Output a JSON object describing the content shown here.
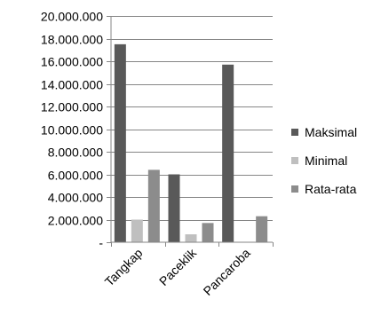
{
  "chart_data": {
    "type": "bar",
    "categories": [
      "Tangkap",
      "Paceklik",
      "Pancaroba"
    ],
    "series": [
      {
        "name": "Maksimal",
        "values": [
          17500000,
          6000000,
          15700000
        ],
        "color": "#595959"
      },
      {
        "name": "Minimal",
        "values": [
          2000000,
          700000,
          0
        ],
        "color": "#bfbfbf"
      },
      {
        "name": "Rata-rata",
        "values": [
          6400000,
          1700000,
          2300000
        ],
        "color": "#8c8c8c"
      }
    ],
    "ylim": [
      0,
      20000000
    ],
    "yticks": [
      {
        "value": 0,
        "label": "-"
      },
      {
        "value": 2000000,
        "label": "2.000.000"
      },
      {
        "value": 4000000,
        "label": "4.000.000"
      },
      {
        "value": 6000000,
        "label": "6.000.000"
      },
      {
        "value": 8000000,
        "label": "8.000.000"
      },
      {
        "value": 10000000,
        "label": "10.000.000"
      },
      {
        "value": 12000000,
        "label": "12.000.000"
      },
      {
        "value": 14000000,
        "label": "14.000.000"
      },
      {
        "value": 16000000,
        "label": "16.000.000"
      },
      {
        "value": 18000000,
        "label": "18.000.000"
      },
      {
        "value": 20000000,
        "label": "20.000.000"
      }
    ],
    "grid": true,
    "legend_position": "right",
    "title": "",
    "xlabel": "",
    "ylabel": ""
  }
}
